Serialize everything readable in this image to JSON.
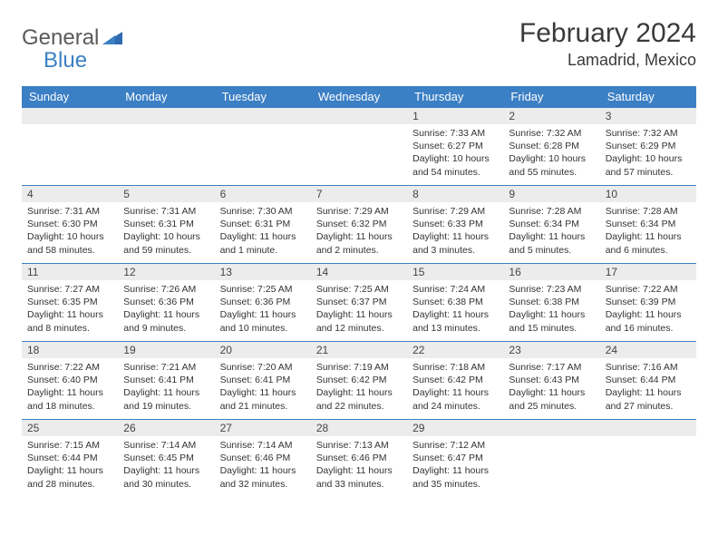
{
  "logo": {
    "text1": "General",
    "text2": "Blue"
  },
  "title": "February 2024",
  "location": "Lamadrid, Mexico",
  "colors": {
    "header_bg": "#3b7fc4",
    "header_text": "#ffffff",
    "daybar_bg": "#ececec",
    "border": "#3b7fc4",
    "page_bg": "#ffffff",
    "text": "#333333",
    "logo_gray": "#5a5a5a",
    "logo_blue": "#3b7fc4"
  },
  "fonts": {
    "title_size_pt": 22,
    "location_size_pt": 14,
    "dayhead_size_pt": 10,
    "body_size_pt": 8
  },
  "weekdays": [
    "Sunday",
    "Monday",
    "Tuesday",
    "Wednesday",
    "Thursday",
    "Friday",
    "Saturday"
  ],
  "weeks": [
    [
      null,
      null,
      null,
      null,
      {
        "n": "1",
        "sr": "Sunrise: 7:33 AM",
        "ss": "Sunset: 6:27 PM",
        "d1": "Daylight: 10 hours",
        "d2": "and 54 minutes."
      },
      {
        "n": "2",
        "sr": "Sunrise: 7:32 AM",
        "ss": "Sunset: 6:28 PM",
        "d1": "Daylight: 10 hours",
        "d2": "and 55 minutes."
      },
      {
        "n": "3",
        "sr": "Sunrise: 7:32 AM",
        "ss": "Sunset: 6:29 PM",
        "d1": "Daylight: 10 hours",
        "d2": "and 57 minutes."
      }
    ],
    [
      {
        "n": "4",
        "sr": "Sunrise: 7:31 AM",
        "ss": "Sunset: 6:30 PM",
        "d1": "Daylight: 10 hours",
        "d2": "and 58 minutes."
      },
      {
        "n": "5",
        "sr": "Sunrise: 7:31 AM",
        "ss": "Sunset: 6:31 PM",
        "d1": "Daylight: 10 hours",
        "d2": "and 59 minutes."
      },
      {
        "n": "6",
        "sr": "Sunrise: 7:30 AM",
        "ss": "Sunset: 6:31 PM",
        "d1": "Daylight: 11 hours",
        "d2": "and 1 minute."
      },
      {
        "n": "7",
        "sr": "Sunrise: 7:29 AM",
        "ss": "Sunset: 6:32 PM",
        "d1": "Daylight: 11 hours",
        "d2": "and 2 minutes."
      },
      {
        "n": "8",
        "sr": "Sunrise: 7:29 AM",
        "ss": "Sunset: 6:33 PM",
        "d1": "Daylight: 11 hours",
        "d2": "and 3 minutes."
      },
      {
        "n": "9",
        "sr": "Sunrise: 7:28 AM",
        "ss": "Sunset: 6:34 PM",
        "d1": "Daylight: 11 hours",
        "d2": "and 5 minutes."
      },
      {
        "n": "10",
        "sr": "Sunrise: 7:28 AM",
        "ss": "Sunset: 6:34 PM",
        "d1": "Daylight: 11 hours",
        "d2": "and 6 minutes."
      }
    ],
    [
      {
        "n": "11",
        "sr": "Sunrise: 7:27 AM",
        "ss": "Sunset: 6:35 PM",
        "d1": "Daylight: 11 hours",
        "d2": "and 8 minutes."
      },
      {
        "n": "12",
        "sr": "Sunrise: 7:26 AM",
        "ss": "Sunset: 6:36 PM",
        "d1": "Daylight: 11 hours",
        "d2": "and 9 minutes."
      },
      {
        "n": "13",
        "sr": "Sunrise: 7:25 AM",
        "ss": "Sunset: 6:36 PM",
        "d1": "Daylight: 11 hours",
        "d2": "and 10 minutes."
      },
      {
        "n": "14",
        "sr": "Sunrise: 7:25 AM",
        "ss": "Sunset: 6:37 PM",
        "d1": "Daylight: 11 hours",
        "d2": "and 12 minutes."
      },
      {
        "n": "15",
        "sr": "Sunrise: 7:24 AM",
        "ss": "Sunset: 6:38 PM",
        "d1": "Daylight: 11 hours",
        "d2": "and 13 minutes."
      },
      {
        "n": "16",
        "sr": "Sunrise: 7:23 AM",
        "ss": "Sunset: 6:38 PM",
        "d1": "Daylight: 11 hours",
        "d2": "and 15 minutes."
      },
      {
        "n": "17",
        "sr": "Sunrise: 7:22 AM",
        "ss": "Sunset: 6:39 PM",
        "d1": "Daylight: 11 hours",
        "d2": "and 16 minutes."
      }
    ],
    [
      {
        "n": "18",
        "sr": "Sunrise: 7:22 AM",
        "ss": "Sunset: 6:40 PM",
        "d1": "Daylight: 11 hours",
        "d2": "and 18 minutes."
      },
      {
        "n": "19",
        "sr": "Sunrise: 7:21 AM",
        "ss": "Sunset: 6:41 PM",
        "d1": "Daylight: 11 hours",
        "d2": "and 19 minutes."
      },
      {
        "n": "20",
        "sr": "Sunrise: 7:20 AM",
        "ss": "Sunset: 6:41 PM",
        "d1": "Daylight: 11 hours",
        "d2": "and 21 minutes."
      },
      {
        "n": "21",
        "sr": "Sunrise: 7:19 AM",
        "ss": "Sunset: 6:42 PM",
        "d1": "Daylight: 11 hours",
        "d2": "and 22 minutes."
      },
      {
        "n": "22",
        "sr": "Sunrise: 7:18 AM",
        "ss": "Sunset: 6:42 PM",
        "d1": "Daylight: 11 hours",
        "d2": "and 24 minutes."
      },
      {
        "n": "23",
        "sr": "Sunrise: 7:17 AM",
        "ss": "Sunset: 6:43 PM",
        "d1": "Daylight: 11 hours",
        "d2": "and 25 minutes."
      },
      {
        "n": "24",
        "sr": "Sunrise: 7:16 AM",
        "ss": "Sunset: 6:44 PM",
        "d1": "Daylight: 11 hours",
        "d2": "and 27 minutes."
      }
    ],
    [
      {
        "n": "25",
        "sr": "Sunrise: 7:15 AM",
        "ss": "Sunset: 6:44 PM",
        "d1": "Daylight: 11 hours",
        "d2": "and 28 minutes."
      },
      {
        "n": "26",
        "sr": "Sunrise: 7:14 AM",
        "ss": "Sunset: 6:45 PM",
        "d1": "Daylight: 11 hours",
        "d2": "and 30 minutes."
      },
      {
        "n": "27",
        "sr": "Sunrise: 7:14 AM",
        "ss": "Sunset: 6:46 PM",
        "d1": "Daylight: 11 hours",
        "d2": "and 32 minutes."
      },
      {
        "n": "28",
        "sr": "Sunrise: 7:13 AM",
        "ss": "Sunset: 6:46 PM",
        "d1": "Daylight: 11 hours",
        "d2": "and 33 minutes."
      },
      {
        "n": "29",
        "sr": "Sunrise: 7:12 AM",
        "ss": "Sunset: 6:47 PM",
        "d1": "Daylight: 11 hours",
        "d2": "and 35 minutes."
      },
      null,
      null
    ]
  ]
}
